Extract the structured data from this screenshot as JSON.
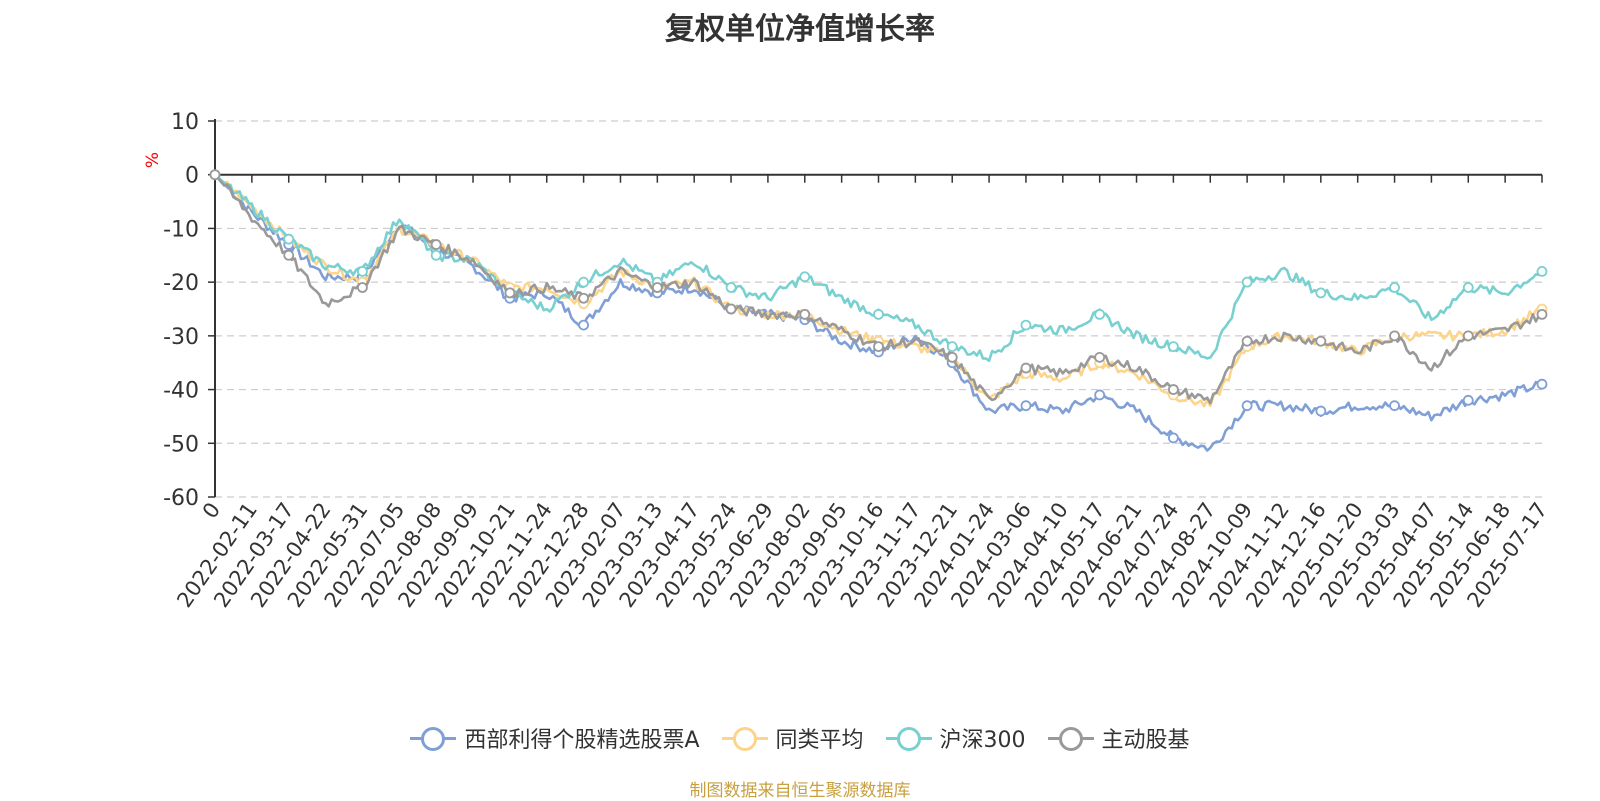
{
  "title": "复权单位净值增长率",
  "source_note": "制图数据来自恒生聚源数据库",
  "colors": {
    "fund": "#7f9fd6",
    "peer_avg": "#fcd48a",
    "hs300": "#78d0d0",
    "active_equity": "#999999",
    "axis": "#333333",
    "grid": "#cccccc",
    "ylabel": "#ff0000",
    "source": "#c8a040"
  },
  "chart_data": {
    "type": "line",
    "title": "复权单位净值增长率",
    "ylabel": "%",
    "ylim": [
      -60,
      10
    ],
    "yticks": [
      10,
      0,
      -10,
      -20,
      -30,
      -40,
      -50,
      -60
    ],
    "grid": true,
    "legend_position": "bottom-center",
    "x": [
      "0",
      "2022-02-11",
      "2022-03-17",
      "2022-04-22",
      "2022-05-31",
      "2022-07-05",
      "2022-08-08",
      "2022-09-09",
      "2022-10-21",
      "2022-11-24",
      "2022-12-28",
      "2023-02-07",
      "2023-03-13",
      "2023-04-17",
      "2023-05-24",
      "2023-06-29",
      "2023-08-02",
      "2023-09-05",
      "2023-10-16",
      "2023-11-17",
      "2023-12-21",
      "2024-01-24",
      "2024-03-06",
      "2024-04-10",
      "2024-05-17",
      "2024-06-21",
      "2024-07-24",
      "2024-08-27",
      "2024-10-09",
      "2024-11-12",
      "2024-12-16",
      "2025-01-20",
      "2025-03-03",
      "2025-04-07",
      "2025-05-14",
      "2025-06-18",
      "2025-07-17"
    ],
    "series": [
      {
        "name": "西部利得个股精选股票A",
        "color_key": "fund",
        "values": [
          0,
          -7,
          -13,
          -19,
          -19,
          -9,
          -14,
          -17,
          -23,
          -22,
          -28,
          -20,
          -22,
          -21,
          -25,
          -26,
          -27,
          -31,
          -33,
          -30,
          -35,
          -44,
          -43,
          -44,
          -41,
          -44,
          -49,
          -51,
          -43,
          -43,
          -44,
          -43,
          -43,
          -45,
          -42,
          -41,
          -39
        ]
      },
      {
        "name": "同类平均",
        "color_key": "peer_avg",
        "values": [
          0,
          -6,
          -12,
          -17,
          -20,
          -10,
          -13,
          -16,
          -21,
          -21,
          -24,
          -18,
          -21,
          -20,
          -25,
          -26,
          -26,
          -29,
          -31,
          -32,
          -34,
          -42,
          -37,
          -38,
          -35,
          -37,
          -41,
          -43,
          -32,
          -30,
          -31,
          -33,
          -30,
          -30,
          -30,
          -29,
          -25
        ]
      },
      {
        "name": "沪深300",
        "color_key": "hs300",
        "values": [
          0,
          -6,
          -12,
          -17,
          -18,
          -8,
          -15,
          -16,
          -22,
          -25,
          -20,
          -16,
          -20,
          -16,
          -21,
          -23,
          -19,
          -23,
          -26,
          -28,
          -32,
          -34,
          -28,
          -29,
          -26,
          -30,
          -32,
          -34,
          -20,
          -18,
          -22,
          -23,
          -21,
          -27,
          -21,
          -22,
          -18
        ]
      },
      {
        "name": "主动股基",
        "color_key": "active_equity",
        "values": [
          0,
          -8,
          -15,
          -24,
          -21,
          -10,
          -13,
          -16,
          -22,
          -21,
          -23,
          -18,
          -21,
          -20,
          -25,
          -26,
          -26,
          -29,
          -32,
          -31,
          -34,
          -42,
          -36,
          -37,
          -34,
          -36,
          -40,
          -42,
          -31,
          -30,
          -31,
          -33,
          -30,
          -36,
          -30,
          -29,
          -26
        ]
      }
    ]
  }
}
